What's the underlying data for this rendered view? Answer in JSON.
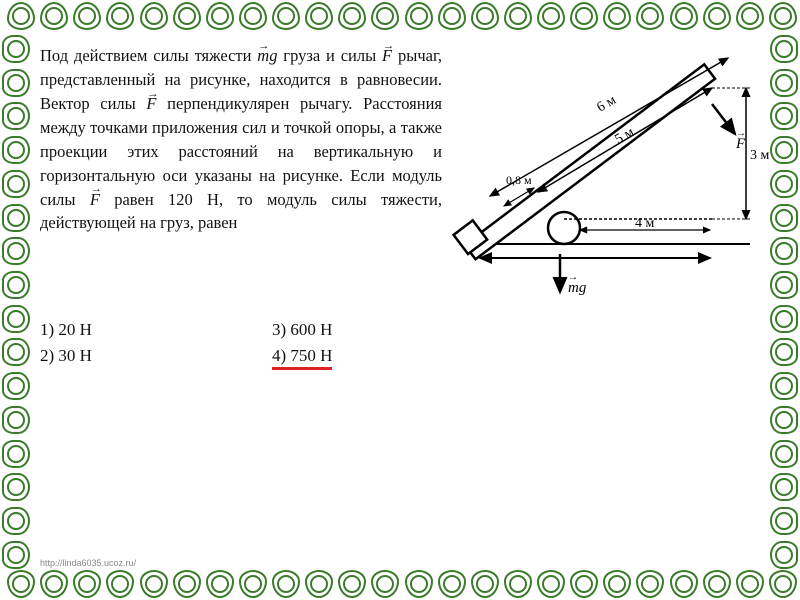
{
  "border": {
    "color": "#3a7a2a",
    "motif_count_horizontal": 24,
    "motif_count_vertical": 16
  },
  "problem": {
    "text_parts": {
      "p1a": "Под действием силы тяжести ",
      "p1b": "mg",
      "p1c": " груза и силы ",
      "p1d": "F",
      "p1e": " рычаг, представленный на рисунке, находится в равновесии. Вектор силы ",
      "p1f": "F",
      "p1g": " перпендикулярен рычагу. Расстояния между точками приложения сил и точкой опоры, а также проекции этих расстояний на вертикальную и горизонтальную оси указаны на рисунке. Если модуль силы ",
      "p1h": "F",
      "p1i": " равен 120 Н, то модуль силы тяжести, действующей на груз, равен"
    },
    "diagram": {
      "dim_6m": "6 м",
      "dim_5m": "5 м",
      "dim_08m": "0,8 м",
      "dim_4m": "4 м",
      "dim_3m": "3 м",
      "force_F": "F",
      "force_mg": "mg",
      "stroke": "#000",
      "fill": "#fff"
    },
    "answers": {
      "a1": "1)  20 Н",
      "a2": "2)  30 Н",
      "a3": "3) 600 Н",
      "a4": "4) 750 Н"
    }
  },
  "footer": {
    "url": "http://linda6035.ucoz.ru/"
  },
  "styling": {
    "body_font": "Georgia/Times",
    "text_fontsize_pt": 12,
    "underline_color": "#d22",
    "background": "#ffffff"
  }
}
